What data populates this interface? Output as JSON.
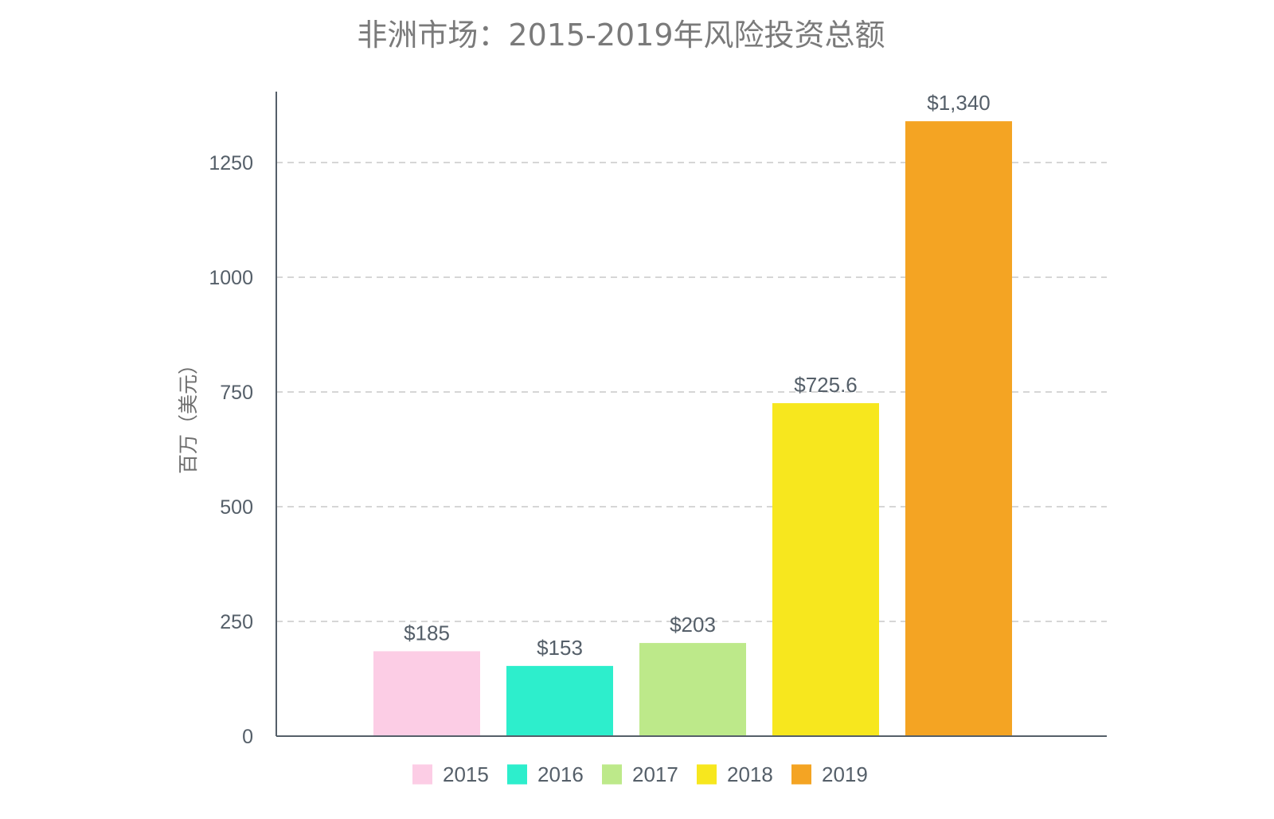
{
  "chart_data": {
    "type": "bar",
    "title": "非洲市场：2015-2019年风险投资总额",
    "ylabel": "百万（美元）",
    "xlabel": "",
    "categories": [
      "2015",
      "2016",
      "2017",
      "2018",
      "2019"
    ],
    "values": [
      185,
      153,
      203,
      725.6,
      1340
    ],
    "data_labels": [
      "$185",
      "$153",
      "$203",
      "$725.6",
      "$1,340"
    ],
    "colors": [
      "#fccde5",
      "#2deecc",
      "#bde98a",
      "#f7e71e",
      "#f4a423"
    ],
    "ylim": [
      0,
      1400
    ],
    "yticks": [
      0,
      250,
      500,
      750,
      1000,
      1250
    ],
    "ytick_labels": [
      "0",
      "250",
      "500",
      "750",
      "1000",
      "1250"
    ],
    "grid": true,
    "legend": {
      "placement": "bottom-center",
      "entries": [
        "2015",
        "2016",
        "2017",
        "2018",
        "2019"
      ]
    }
  }
}
